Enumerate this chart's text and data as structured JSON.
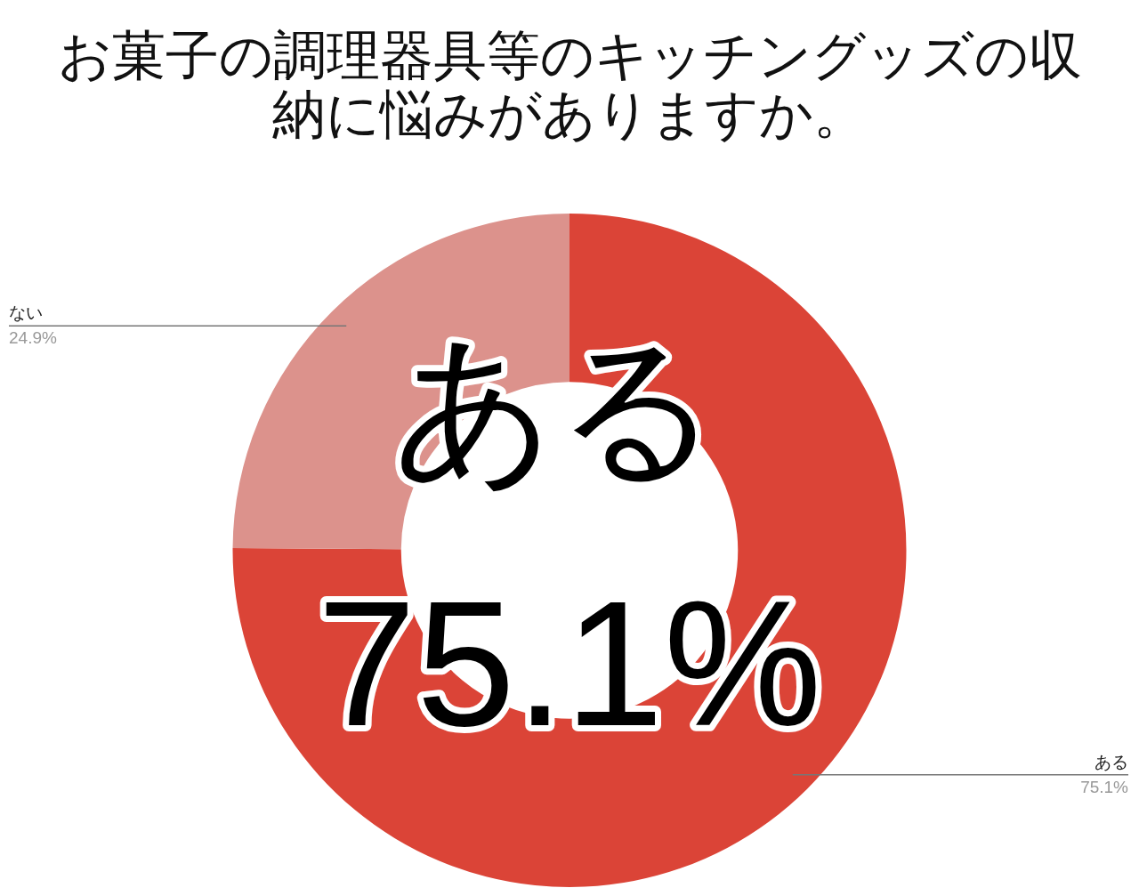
{
  "chart_data": {
    "type": "donut",
    "title": "お菓子の調理器具等のキッチングッズの収納に悩みがありますか。",
    "categories": [
      "ある",
      "ない"
    ],
    "values": [
      75.1,
      24.9
    ],
    "colors": [
      "#db4437",
      "#dc928c"
    ],
    "value_labels": [
      "75.1%",
      "24.9%"
    ],
    "annotations": [
      "ある",
      "75.1%"
    ],
    "legend": false
  }
}
